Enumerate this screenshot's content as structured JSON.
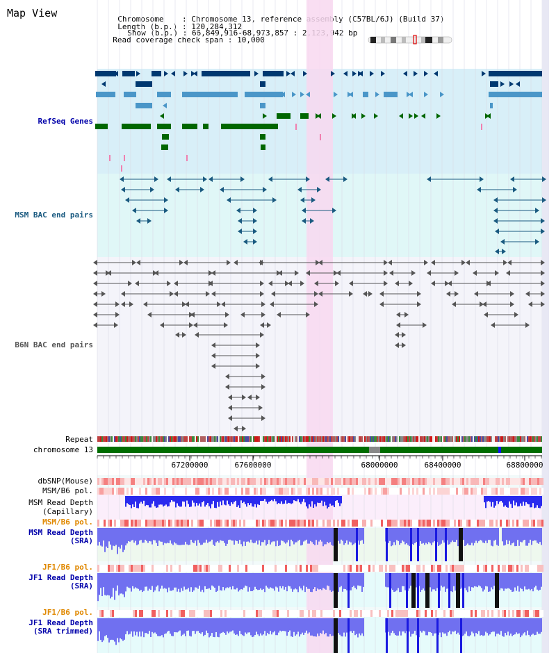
{
  "app": {
    "title": "Map View"
  },
  "info": {
    "chromosome_label": "Chromosome",
    "chromosome_value": "Chromosome 13, reference assembly (C57BL/6J) (Build 37)",
    "length_label": "Length (b.p.)",
    "length_value": "120,284,312",
    "show_label": "Show (b.p.)",
    "show_value": "66,849,916-68,973,857 : 2,123,942 bp",
    "span_label": "Read coverage check span",
    "span_value": "10,000"
  },
  "tracks": {
    "refseq": "RefSeq Genes",
    "msm_bac": "MSM BAC end pairs",
    "b6n_bac": "B6N BAC end pairs",
    "repeat": "Repeat",
    "chromosome": "chromosome 13",
    "dbsnp": "dbSNP(Mouse)",
    "msm_b6_pol_1": "MSM/B6 pol.",
    "msm_read_depth_cap": [
      "MSM Read Depth",
      "(Capillary)"
    ],
    "msm_b6_pol_2": "MSM/B6 pol.",
    "msm_read_depth_sra": [
      "MSM Read Depth",
      "(SRA)"
    ],
    "jf1_b6_pol_1": "JF1/B6 pol.",
    "jf1_read_depth_sra": [
      "JF1 Read Depth",
      "(SRA)"
    ],
    "jf1_b6_pol_2": "JF1/B6 pol.",
    "jf1_read_depth_trim": [
      "JF1 Read Depth",
      "(SRA trimmed)"
    ]
  },
  "axis": {
    "ticks": [
      "67200000",
      "67600000",
      "68000000",
      "68400000",
      "68800000"
    ]
  },
  "colors": {
    "refseq_bg": "#d8eff8",
    "msm_bg": "#e0f7f7",
    "b6n_bg": "#f4f4fa",
    "highlight": "#f8d8f0",
    "gene_dark": "#003870",
    "gene_mid": "#4a96c8",
    "gene_green": "#006600",
    "msm_bac": "#1a5a80",
    "b6n_bac": "#555555",
    "pol_label": "#e08800",
    "depth_label": "#0000aa",
    "depth_bar": "#2020e0"
  }
}
